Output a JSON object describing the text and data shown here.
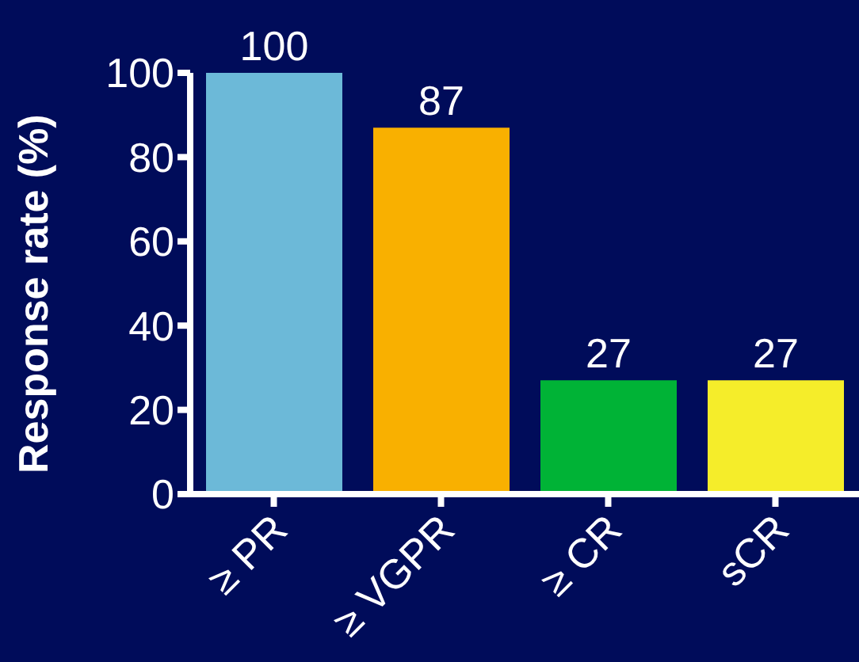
{
  "chart_data": {
    "type": "bar",
    "ylabel": "Response rate (%)",
    "categories": [
      "≥ PR",
      "≥ VGPR",
      "≥ CR",
      "sCR"
    ],
    "values": [
      100,
      87,
      27,
      27
    ],
    "colors": [
      "#6cb9d8",
      "#f9b000",
      "#00b336",
      "#f5ed2a"
    ],
    "ylim": [
      0,
      100
    ],
    "yticks": [
      0,
      20,
      40,
      60,
      80,
      100
    ],
    "data_labels": true,
    "grid": false,
    "legend": false
  }
}
